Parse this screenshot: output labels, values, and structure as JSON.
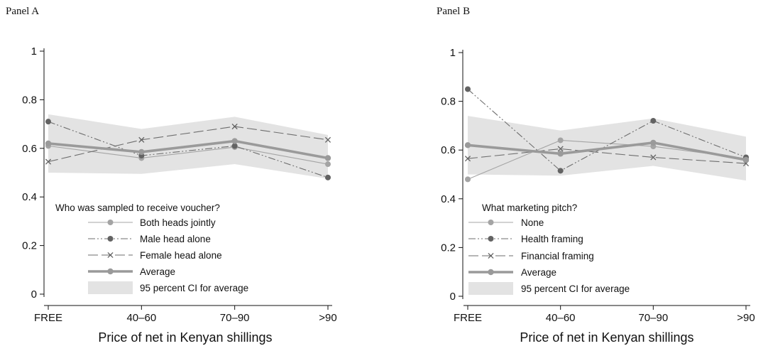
{
  "colors": {
    "band": "#e3e3e3",
    "average": "#9a9a9a",
    "line_light": "#a4a4a4",
    "line_dark": "#6e6e6e",
    "marker_light": "#a4a4a4",
    "marker_dark": "#636363"
  },
  "chart_data": [
    {
      "type": "line",
      "title": "Panel A",
      "xlabel": "Price of net in Kenyan shillings",
      "categories": [
        "FREE",
        "40–60",
        "70–90",
        ">90"
      ],
      "ylim": [
        0,
        1
      ],
      "yticks": [
        0,
        0.2,
        0.4,
        0.6,
        0.8,
        1
      ],
      "ytick_labels": [
        "0",
        "0.2",
        "0.4",
        "0.6",
        "0.8",
        "1"
      ],
      "legend_title": "Who was sampled to receive voucher?",
      "series": [
        {
          "name": "Both heads jointly",
          "values": [
            0.61,
            0.56,
            0.605,
            0.535
          ],
          "style": "solid-thin",
          "marker": "circle",
          "tone": "light"
        },
        {
          "name": "Male head alone",
          "values": [
            0.71,
            0.57,
            0.61,
            0.48
          ],
          "style": "dashdot",
          "marker": "circle",
          "tone": "dark"
        },
        {
          "name": "Female head alone",
          "values": [
            0.545,
            0.635,
            0.69,
            0.635
          ],
          "style": "longdash",
          "marker": "x",
          "tone": "dark"
        },
        {
          "name": "Average",
          "values": [
            0.62,
            0.585,
            0.63,
            0.56
          ],
          "style": "solid-thick",
          "marker": "circle",
          "tone": "average"
        }
      ],
      "ci": {
        "name": "95 percent CI for average",
        "lower": [
          0.5,
          0.495,
          0.535,
          0.475
        ],
        "upper": [
          0.74,
          0.68,
          0.73,
          0.655
        ]
      }
    },
    {
      "type": "line",
      "title": "Panel B",
      "xlabel": "Price of net in Kenyan shillings",
      "categories": [
        "FREE",
        "40–60",
        "70–90",
        ">90"
      ],
      "ylim": [
        0,
        1
      ],
      "yticks": [
        0,
        0.2,
        0.4,
        0.6,
        0.8,
        1
      ],
      "ytick_labels": [
        "0",
        "0.2",
        "0.4",
        "0.6",
        "0.8",
        "1"
      ],
      "legend_title": "What marketing pitch?",
      "series": [
        {
          "name": "None",
          "values": [
            0.48,
            0.64,
            0.615,
            0.565
          ],
          "style": "solid-thin",
          "marker": "circle",
          "tone": "light"
        },
        {
          "name": "Health framing",
          "values": [
            0.85,
            0.515,
            0.72,
            0.57
          ],
          "style": "dashdot",
          "marker": "circle",
          "tone": "dark"
        },
        {
          "name": "Financial framing",
          "values": [
            0.565,
            0.605,
            0.57,
            0.545
          ],
          "style": "longdash",
          "marker": "x",
          "tone": "dark"
        },
        {
          "name": "Average",
          "values": [
            0.62,
            0.585,
            0.63,
            0.56
          ],
          "style": "solid-thick",
          "marker": "circle",
          "tone": "average"
        }
      ],
      "ci": {
        "name": "95 percent CI for average",
        "lower": [
          0.5,
          0.495,
          0.535,
          0.475
        ],
        "upper": [
          0.74,
          0.68,
          0.73,
          0.655
        ]
      }
    }
  ]
}
